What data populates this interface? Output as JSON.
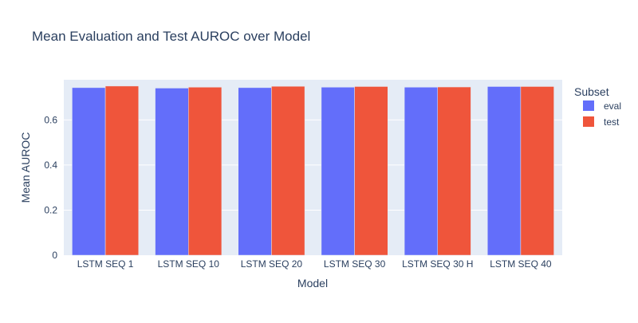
{
  "chart_data": {
    "type": "bar",
    "title": "Mean Evaluation and Test AUROC over Model",
    "xlabel": "Model",
    "ylabel": "Mean AUROC",
    "categories": [
      "LSTM SEQ 1",
      "LSTM SEQ 10",
      "LSTM SEQ 20",
      "LSTM SEQ 30",
      "LSTM SEQ 30 H",
      "LSTM SEQ 40"
    ],
    "series": [
      {
        "name": "eval",
        "color": "#636efa",
        "values": [
          0.743,
          0.741,
          0.743,
          0.745,
          0.745,
          0.748
        ]
      },
      {
        "name": "test",
        "color": "#ef553b",
        "values": [
          0.75,
          0.745,
          0.749,
          0.748,
          0.746,
          0.748
        ]
      }
    ],
    "ylim": [
      0,
      0.778
    ],
    "yticks": [
      0,
      0.2,
      0.4,
      0.6
    ],
    "ytick_labels": [
      "0",
      "0.2",
      "0.4",
      "0.6"
    ],
    "legend": {
      "title": "Subset",
      "position": "right"
    },
    "grid": true,
    "plot_bg": "#e5ecf6"
  }
}
